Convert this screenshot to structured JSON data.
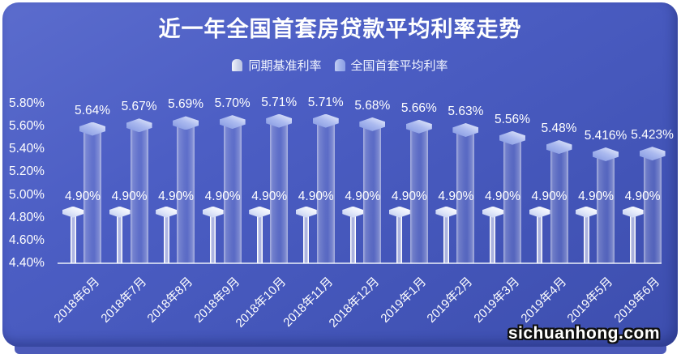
{
  "title": "近一年全国首套房贷款平均利率走势",
  "watermark": "sichuanhong.com",
  "colors": {
    "panel_top": "#5b6ccd",
    "panel_bottom": "#3d4eae",
    "benchmark_bar": "#eef1fb",
    "average_bar": "#9dafe9",
    "text": "#ffffff",
    "back_strip": "#4c5ab9"
  },
  "chart_data": {
    "type": "bar",
    "title": "近一年全国首套房贷款平均利率走势",
    "categories": [
      "2018年6月",
      "2018年7月",
      "2018年8月",
      "2018年9月",
      "2018年10月",
      "2018年11月",
      "2018年12月",
      "2019年1月",
      "2019年2月",
      "2019年3月",
      "2019年4月",
      "2019年5月",
      "2019年6月"
    ],
    "series": [
      {
        "name": "同期基准利率",
        "values": [
          4.9,
          4.9,
          4.9,
          4.9,
          4.9,
          4.9,
          4.9,
          4.9,
          4.9,
          4.9,
          4.9,
          4.9,
          4.9
        ],
        "labels": [
          "4.90%",
          "4.90%",
          "4.90%",
          "4.90%",
          "4.90%",
          "4.90%",
          "4.90%",
          "4.90%",
          "4.90%",
          "4.90%",
          "4.90%",
          "4.90%",
          "4.90%"
        ]
      },
      {
        "name": "全国首套平均利率",
        "values": [
          5.64,
          5.67,
          5.69,
          5.7,
          5.71,
          5.71,
          5.68,
          5.66,
          5.63,
          5.56,
          5.48,
          5.416,
          5.423
        ],
        "labels": [
          "5.64%",
          "5.67%",
          "5.69%",
          "5.70%",
          "5.71%",
          "5.71%",
          "5.68%",
          "5.66%",
          "5.63%",
          "5.56%",
          "5.48%",
          "5.416%",
          "5.423%"
        ]
      }
    ],
    "ylim": [
      4.4,
      5.8
    ],
    "yticks": [
      "5.80%",
      "5.60%",
      "5.40%",
      "5.20%",
      "5.00%",
      "4.80%",
      "4.60%",
      "4.40%"
    ],
    "grid": false,
    "legend_position": "top-center"
  }
}
